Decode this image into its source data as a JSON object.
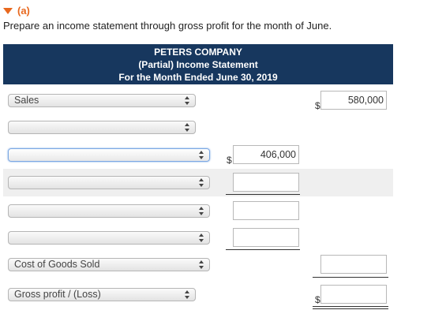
{
  "part": {
    "label": "(a)"
  },
  "instruction": "Prepare an income statement through gross profit for the month of June.",
  "header": {
    "company": "PETERS COMPANY",
    "statement": "(Partial) Income Statement",
    "period": "For the Month Ended June 30, 2019"
  },
  "currency_symbol": "$",
  "rows": [
    {
      "select_value": "Sales",
      "amount_col2": "580,000"
    },
    {
      "select_value": ""
    },
    {
      "select_value": "",
      "amount_col1": "406,000"
    },
    {
      "select_value": "",
      "amount_col1": ""
    },
    {
      "select_value": "",
      "amount_col1": ""
    },
    {
      "select_value": "",
      "amount_col1": ""
    },
    {
      "select_value": "Cost of Goods Sold",
      "amount_col2": ""
    },
    {
      "select_value": "Gross profit / (Loss)",
      "amount_col2": ""
    }
  ],
  "colors": {
    "header_bg": "#17375e",
    "accent": "#e8681e",
    "shade": "#efefef"
  }
}
